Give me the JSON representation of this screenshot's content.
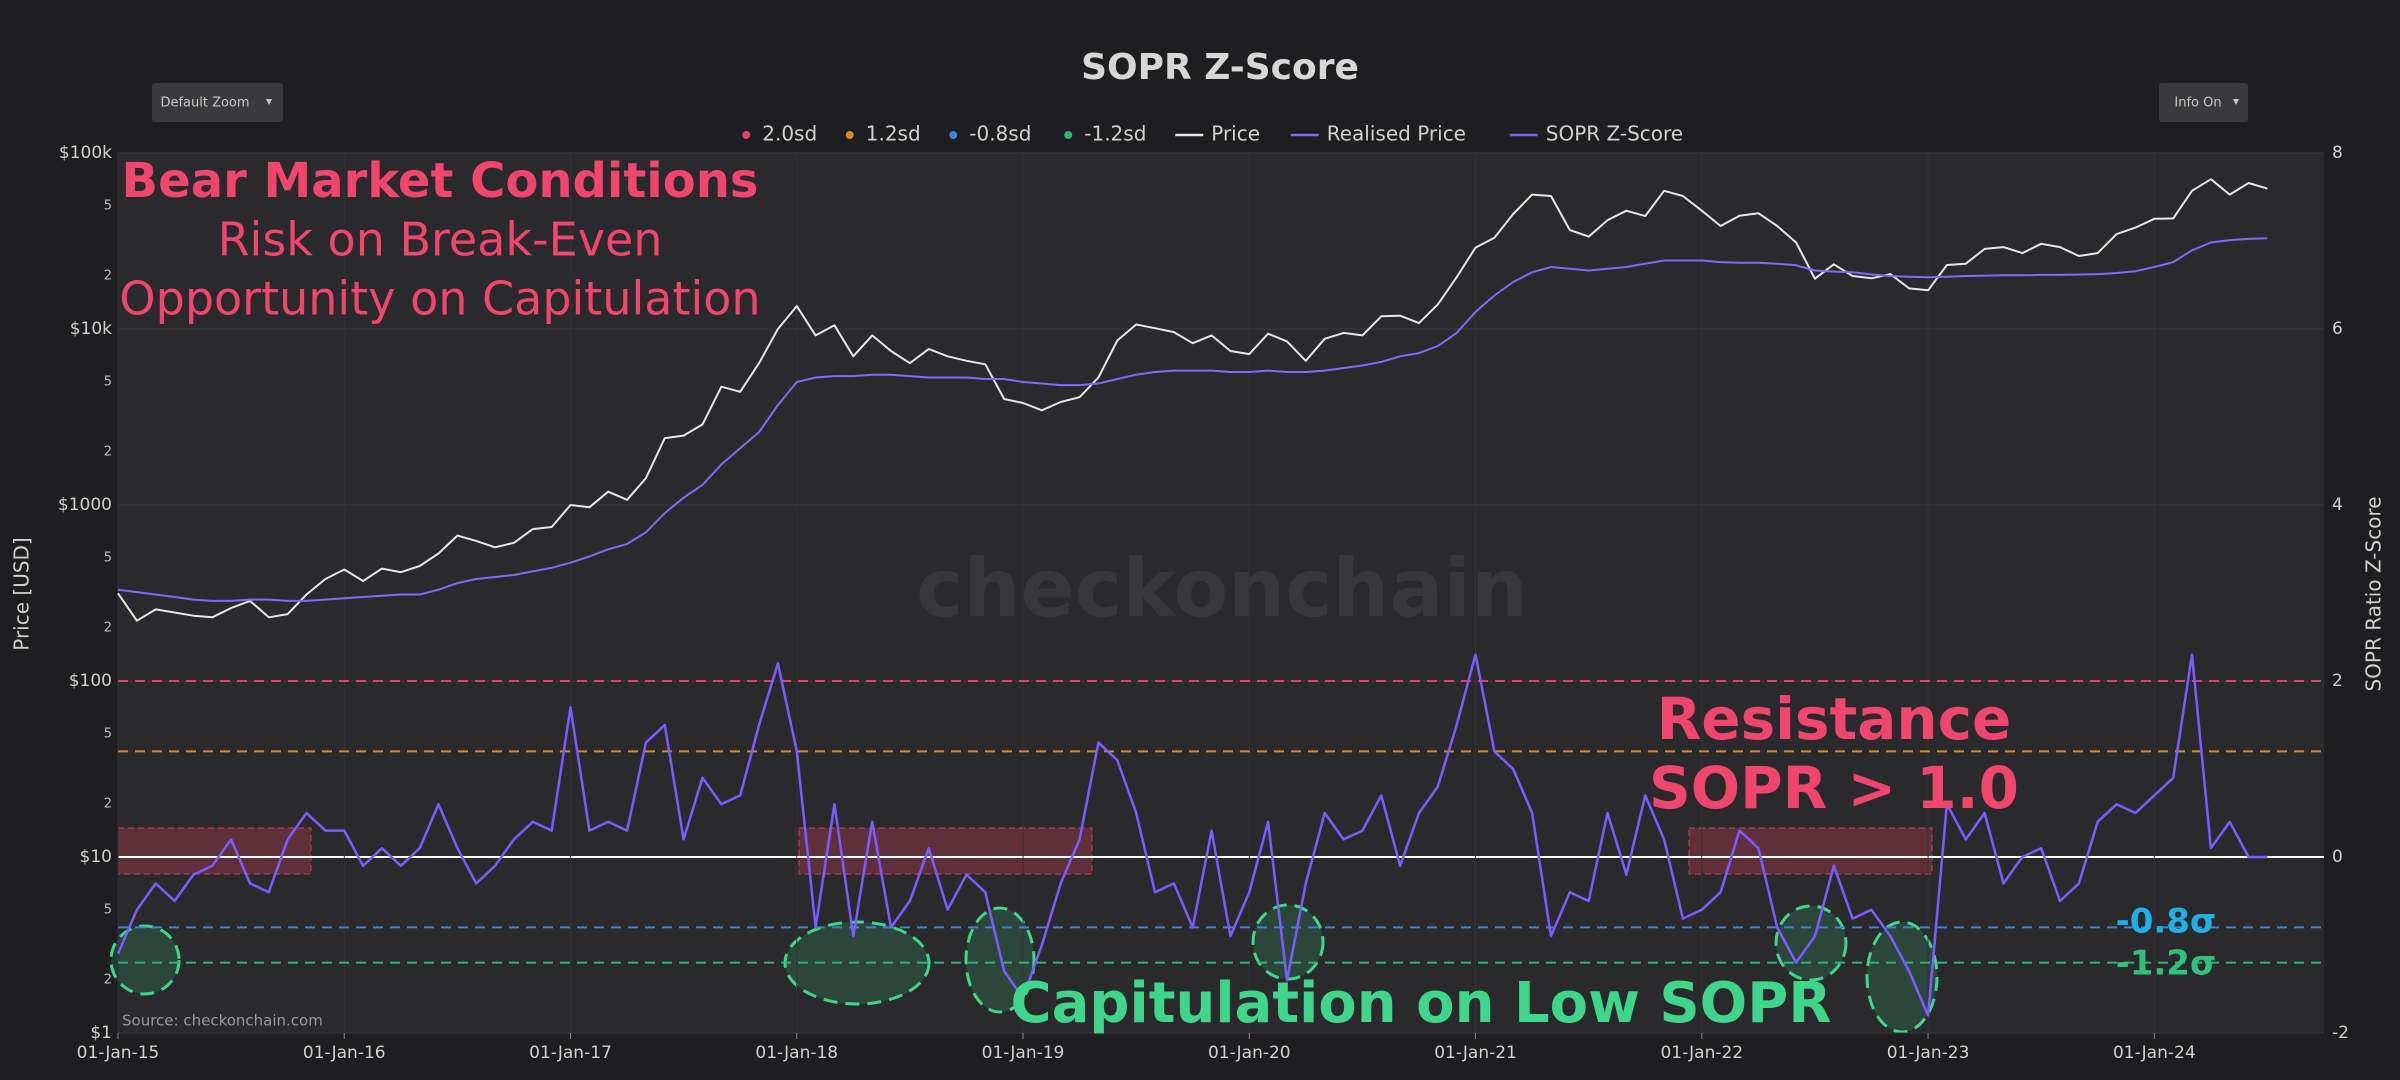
{
  "chart_data": {
    "type": "line",
    "title": "SOPR Z-Score",
    "buttons": [
      "Default Zoom",
      "Info On"
    ],
    "ylabel": "Price [USD]",
    "y2label": "SOPR Ratio Z-Score",
    "source": "Source: checkonchain.com",
    "watermark": "checkonchain",
    "log_y": true,
    "grid": true,
    "xlim": [
      "01-Jan-15",
      "01-Oct-24"
    ],
    "xticks": [
      "01-Jan-15",
      "01-Jan-16",
      "01-Jan-17",
      "01-Jan-18",
      "01-Jan-19",
      "01-Jan-20",
      "01-Jan-21",
      "01-Jan-22",
      "01-Jan-23",
      "01-Jan-24"
    ],
    "ylim": [
      1,
      100000
    ],
    "yticks": [
      {
        "value": 1,
        "label": "$1"
      },
      2,
      5,
      {
        "value": 10,
        "label": "$10"
      },
      {
        "value": 20,
        "label": "2"
      },
      {
        "value": 50,
        "label": "5"
      },
      {
        "value": 100,
        "label": "$100"
      },
      {
        "value": 200,
        "label": "2"
      },
      {
        "value": 500,
        "label": "5"
      },
      {
        "value": 1000,
        "label": "$1000"
      },
      {
        "value": 2000,
        "label": "2"
      },
      {
        "value": 5000,
        "label": "5"
      },
      {
        "value": 10000,
        "label": "$10k"
      },
      {
        "value": 20000,
        "label": "2"
      },
      {
        "value": 50000,
        "label": "5"
      },
      {
        "value": 100000,
        "label": "$100k"
      }
    ],
    "y2lim": [
      -2,
      8
    ],
    "y2ticks": [
      -2,
      0,
      2,
      4,
      6,
      8
    ],
    "levels": [
      {
        "name": "2.0sd",
        "color": "#d9466a",
        "value": 2.0
      },
      {
        "name": "1.2sd",
        "color": "#d98a26",
        "value": 1.2
      },
      {
        "name": "-0.8sd",
        "color": "#3a86d4",
        "value": -0.8
      },
      {
        "name": "-1.2sd",
        "color": "#2fb37a",
        "value": -1.2
      }
    ],
    "x": [
      "01-Jan-15",
      "01-Feb-15",
      "01-Mar-15",
      "01-Apr-15",
      "01-May-15",
      "01-Jun-15",
      "01-Jul-15",
      "01-Aug-15",
      "01-Sep-15",
      "01-Oct-15",
      "01-Nov-15",
      "01-Dec-15",
      "01-Jan-16",
      "01-Feb-16",
      "01-Mar-16",
      "01-Apr-16",
      "01-May-16",
      "01-Jun-16",
      "01-Jul-16",
      "01-Aug-16",
      "01-Sep-16",
      "01-Oct-16",
      "01-Nov-16",
      "01-Dec-16",
      "01-Jan-17",
      "01-Feb-17",
      "01-Mar-17",
      "01-Apr-17",
      "01-May-17",
      "01-Jun-17",
      "01-Jul-17",
      "01-Aug-17",
      "01-Sep-17",
      "01-Oct-17",
      "01-Nov-17",
      "01-Dec-17",
      "01-Jan-18",
      "01-Feb-18",
      "01-Mar-18",
      "01-Apr-18",
      "01-May-18",
      "01-Jun-18",
      "01-Jul-18",
      "01-Aug-18",
      "01-Sep-18",
      "01-Oct-18",
      "01-Nov-18",
      "01-Dec-18",
      "01-Jan-19",
      "01-Feb-19",
      "01-Mar-19",
      "01-Apr-19",
      "01-May-19",
      "01-Jun-19",
      "01-Jul-19",
      "01-Aug-19",
      "01-Sep-19",
      "01-Oct-19",
      "01-Nov-19",
      "01-Dec-19",
      "01-Jan-20",
      "01-Feb-20",
      "01-Mar-20",
      "01-Apr-20",
      "01-May-20",
      "01-Jun-20",
      "01-Jul-20",
      "01-Aug-20",
      "01-Sep-20",
      "01-Oct-20",
      "01-Nov-20",
      "01-Dec-20",
      "01-Jan-21",
      "01-Feb-21",
      "01-Mar-21",
      "01-Apr-21",
      "01-May-21",
      "01-Jun-21",
      "01-Jul-21",
      "01-Aug-21",
      "01-Sep-21",
      "01-Oct-21",
      "01-Nov-21",
      "01-Dec-21",
      "01-Jan-22",
      "01-Feb-22",
      "01-Mar-22",
      "01-Apr-22",
      "01-May-22",
      "01-Jun-22",
      "01-Jul-22",
      "01-Aug-22",
      "01-Sep-22",
      "01-Oct-22",
      "01-Nov-22",
      "01-Dec-22",
      "01-Jan-23",
      "01-Feb-23",
      "01-Mar-23",
      "01-Apr-23",
      "01-May-23",
      "01-Jun-23",
      "01-Jul-23",
      "01-Aug-23",
      "01-Sep-23",
      "01-Oct-23",
      "01-Nov-23",
      "01-Dec-23",
      "01-Jan-24",
      "01-Feb-24",
      "01-Mar-24",
      "01-Apr-24",
      "01-May-24",
      "01-Jun-24",
      "01-Jul-24"
    ],
    "series": [
      {
        "name": "Price",
        "color": "#e6e6e6",
        "axis": "y",
        "values": [
          315,
          220,
          255,
          245,
          235,
          230,
          260,
          285,
          230,
          240,
          310,
          380,
          430,
          370,
          435,
          415,
          450,
          530,
          670,
          625,
          575,
          610,
          730,
          750,
          1000,
          970,
          1190,
          1070,
          1420,
          2400,
          2480,
          2870,
          4700,
          4400,
          6400,
          10000,
          13500,
          9200,
          10500,
          7000,
          9200,
          7500,
          6400,
          7700,
          7000,
          6600,
          6300,
          4000,
          3800,
          3450,
          3850,
          4100,
          5300,
          8600,
          10600,
          10100,
          9600,
          8300,
          9200,
          7500,
          7200,
          9400,
          8500,
          6600,
          8800,
          9500,
          9200,
          11800,
          11900,
          10800,
          13800,
          19700,
          29000,
          33000,
          45000,
          58000,
          57000,
          36500,
          33500,
          41500,
          47000,
          43800,
          61000,
          57000,
          47000,
          38500,
          44000,
          45500,
          38500,
          31000,
          19300,
          23300,
          20000,
          19400,
          20500,
          17000,
          16600,
          23100,
          23500,
          28500,
          29200,
          27000,
          30500,
          29200,
          26000,
          27000,
          34600,
          37700,
          42300,
          42500,
          61000,
          71000,
          58000,
          67500,
          62800
        ]
      },
      {
        "name": "Realised Price",
        "color": "#7c6cf8",
        "axis": "y",
        "values": [
          330,
          320,
          310,
          300,
          290,
          285,
          285,
          290,
          290,
          285,
          285,
          290,
          295,
          300,
          305,
          310,
          310,
          330,
          360,
          380,
          390,
          400,
          420,
          440,
          470,
          510,
          560,
          600,
          700,
          900,
          1100,
          1300,
          1700,
          2100,
          2600,
          3700,
          5000,
          5300,
          5400,
          5400,
          5500,
          5500,
          5400,
          5300,
          5300,
          5300,
          5200,
          5200,
          5000,
          4900,
          4800,
          4800,
          4900,
          5200,
          5500,
          5700,
          5800,
          5800,
          5800,
          5700,
          5700,
          5800,
          5700,
          5700,
          5800,
          6000,
          6200,
          6500,
          7000,
          7300,
          8000,
          9500,
          12500,
          15500,
          18500,
          21000,
          22500,
          22000,
          21500,
          22000,
          22500,
          23500,
          24500,
          24500,
          24500,
          24000,
          23800,
          23800,
          23500,
          23000,
          21500,
          21200,
          21000,
          20400,
          20000,
          19800,
          19700,
          19800,
          20000,
          20100,
          20200,
          20200,
          20300,
          20300,
          20400,
          20500,
          20800,
          21300,
          22500,
          24000,
          28000,
          31000,
          32000,
          32500,
          32800
        ]
      },
      {
        "name": "SOPR Z-Score",
        "color": "#7b5cff",
        "axis": "y2",
        "values": [
          -1.1,
          -0.6,
          -0.3,
          -0.5,
          -0.2,
          -0.1,
          0.2,
          -0.3,
          -0.4,
          0.2,
          0.5,
          0.3,
          0.3,
          -0.1,
          0.1,
          -0.1,
          0.1,
          0.6,
          0.1,
          -0.3,
          -0.1,
          0.2,
          0.4,
          0.3,
          1.7,
          0.3,
          0.4,
          0.3,
          1.3,
          1.5,
          0.2,
          0.9,
          0.6,
          0.7,
          1.5,
          2.2,
          1.2,
          -0.8,
          0.6,
          -0.9,
          0.4,
          -0.8,
          -0.5,
          0.1,
          -0.6,
          -0.2,
          -0.4,
          -1.3,
          -1.6,
          -1.0,
          -0.3,
          0.2,
          1.3,
          1.1,
          0.5,
          -0.4,
          -0.3,
          -0.8,
          0.3,
          -0.9,
          -0.4,
          0.4,
          -1.4,
          -0.3,
          0.5,
          0.2,
          0.3,
          0.7,
          -0.1,
          0.5,
          0.8,
          1.5,
          2.3,
          1.2,
          1.0,
          0.5,
          -0.9,
          -0.4,
          -0.5,
          0.5,
          -0.2,
          0.7,
          0.2,
          -0.7,
          -0.6,
          -0.4,
          0.3,
          0.1,
          -0.8,
          -1.2,
          -0.9,
          -0.1,
          -0.7,
          -0.6,
          -0.9,
          -1.3,
          -1.8,
          0.6,
          0.2,
          0.5,
          -0.3,
          0.0,
          0.1,
          -0.5,
          -0.3,
          0.4,
          0.6,
          0.5,
          0.7,
          0.9,
          2.3,
          0.1,
          0.4,
          0.0,
          0.0
        ]
      }
    ],
    "annotations": [
      "Bear Market Conditions",
      "Risk on Break-Even",
      "Opportunity on Capitulation",
      "Resistance",
      "SOPR > 1.0",
      "-0.8σ",
      "-1.2σ",
      "Capitulation on Low SOPR"
    ]
  }
}
